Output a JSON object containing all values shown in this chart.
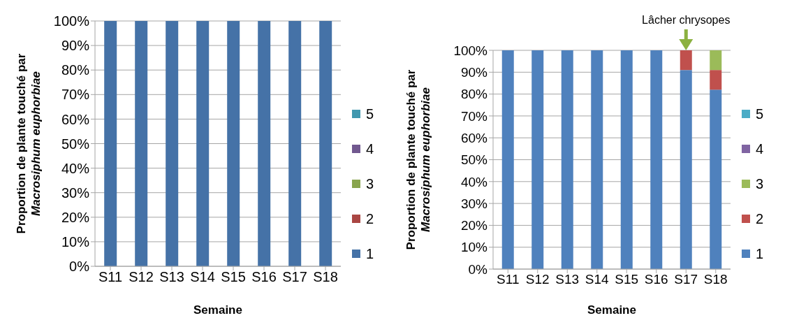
{
  "chart_data": [
    {
      "type": "bar",
      "stacked": true,
      "xlabel": "Semaine",
      "ylabel": "Proportion de plante touché par Macrosiphum euphorbiae",
      "categories": [
        "S11",
        "S12",
        "S13",
        "S14",
        "S15",
        "S16",
        "S17",
        "S18"
      ],
      "series": [
        {
          "name": "1",
          "color": "#4572a7",
          "values": [
            100,
            100,
            100,
            100,
            100,
            100,
            100,
            100
          ]
        },
        {
          "name": "2",
          "color": "#aa4643",
          "values": [
            0,
            0,
            0,
            0,
            0,
            0,
            0,
            0
          ]
        },
        {
          "name": "3",
          "color": "#89a54e",
          "values": [
            0,
            0,
            0,
            0,
            0,
            0,
            0,
            0
          ]
        },
        {
          "name": "4",
          "color": "#71588f",
          "values": [
            0,
            0,
            0,
            0,
            0,
            0,
            0,
            0
          ]
        },
        {
          "name": "5",
          "color": "#4198af",
          "values": [
            0,
            0,
            0,
            0,
            0,
            0,
            0,
            0
          ]
        }
      ],
      "ylim": [
        0,
        100
      ],
      "yticks": [
        {
          "value": 0,
          "label": "0%"
        },
        {
          "value": 10,
          "label": "10%"
        },
        {
          "value": 20,
          "label": "20%"
        },
        {
          "value": 30,
          "label": "30%"
        },
        {
          "value": 40,
          "label": "40%"
        },
        {
          "value": 50,
          "label": "50%"
        },
        {
          "value": 60,
          "label": "60%"
        },
        {
          "value": 70,
          "label": "70%"
        },
        {
          "value": 80,
          "label": "80%"
        },
        {
          "value": 90,
          "label": "90%"
        },
        {
          "value": 100,
          "label": "100%"
        }
      ],
      "grid": "y",
      "legend": "right"
    },
    {
      "type": "bar",
      "stacked": true,
      "xlabel": "Semaine",
      "ylabel": "Proportion de plante touché par Macrosiphum euphorbiae",
      "categories": [
        "S11",
        "S12",
        "S13",
        "S14",
        "S15",
        "S16",
        "S17",
        "S18"
      ],
      "series": [
        {
          "name": "1",
          "color": "#4f81bd",
          "values": [
            100,
            100,
            100,
            100,
            100,
            100,
            91,
            82
          ]
        },
        {
          "name": "2",
          "color": "#c0504d",
          "values": [
            0,
            0,
            0,
            0,
            0,
            0,
            9,
            9
          ]
        },
        {
          "name": "3",
          "color": "#9bbb59",
          "values": [
            0,
            0,
            0,
            0,
            0,
            0,
            0,
            9
          ]
        },
        {
          "name": "4",
          "color": "#8064a2",
          "values": [
            0,
            0,
            0,
            0,
            0,
            0,
            0,
            0
          ]
        },
        {
          "name": "5",
          "color": "#4bacc6",
          "values": [
            0,
            0,
            0,
            0,
            0,
            0,
            0,
            0
          ]
        }
      ],
      "ylim": [
        0,
        100
      ],
      "yticks": [
        {
          "value": 0,
          "label": "0%"
        },
        {
          "value": 10,
          "label": "10%"
        },
        {
          "value": 20,
          "label": "20%"
        },
        {
          "value": 30,
          "label": "30%"
        },
        {
          "value": 40,
          "label": "40%"
        },
        {
          "value": 50,
          "label": "50%"
        },
        {
          "value": 60,
          "label": "60%"
        },
        {
          "value": 70,
          "label": "70%"
        },
        {
          "value": 80,
          "label": "80%"
        },
        {
          "value": 90,
          "label": "90%"
        },
        {
          "value": 100,
          "label": "100%"
        }
      ],
      "grid": "y",
      "legend": "right",
      "annotations": [
        {
          "text": "Lâcher chrysopes",
          "x": "S17",
          "y": 100
        }
      ]
    }
  ]
}
